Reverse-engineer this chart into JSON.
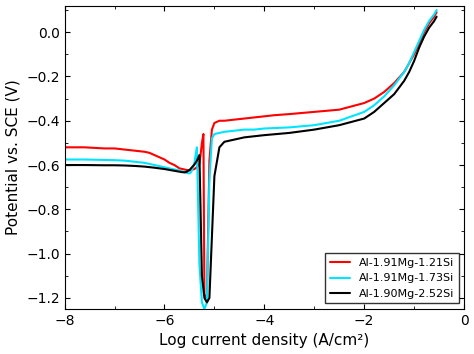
{
  "title": "",
  "xlabel": "Log current density (A/cm²)",
  "ylabel": "Potential vs. SCE (V)",
  "xlim": [
    -8,
    0
  ],
  "ylim": [
    -1.25,
    0.12
  ],
  "xticks": [
    -8,
    -6,
    -4,
    -2,
    0
  ],
  "yticks": [
    -1.2,
    -1.0,
    -0.8,
    -0.6,
    -0.4,
    -0.2,
    0.0
  ],
  "legend": [
    "Al-1.91Mg-1.21Si",
    "Al-1.91Mg-1.73Si",
    "Al-1.90Mg-2.52Si"
  ],
  "colors": [
    "#ff0000",
    "#00e5ff",
    "#000000"
  ],
  "linewidths": [
    1.5,
    1.5,
    1.5
  ],
  "background_color": "#ffffff",
  "curves": {
    "red": {
      "x": [
        -8.0,
        -7.6,
        -7.2,
        -7.0,
        -6.8,
        -6.6,
        -6.4,
        -6.3,
        -6.2,
        -6.1,
        -6.0,
        -5.9,
        -5.8,
        -5.7,
        -5.6,
        -5.5,
        -5.4,
        -5.35,
        -5.3,
        -5.28,
        -5.25,
        -5.22,
        -5.2,
        -5.18,
        -5.15,
        -5.1,
        -5.05,
        -5.0,
        -4.9,
        -4.8,
        -4.6,
        -4.4,
        -4.2,
        -4.0,
        -3.8,
        -3.5,
        -3.0,
        -2.5,
        -2.0,
        -1.8,
        -1.6,
        -1.4,
        -1.2,
        -1.1,
        -1.0,
        -0.9,
        -0.8,
        -0.7,
        -0.6,
        -0.55
      ],
      "y": [
        -0.52,
        -0.52,
        -0.525,
        -0.525,
        -0.53,
        -0.535,
        -0.54,
        -0.545,
        -0.555,
        -0.565,
        -0.575,
        -0.59,
        -0.6,
        -0.615,
        -0.62,
        -0.625,
        -0.618,
        -0.61,
        -0.595,
        -0.56,
        -0.5,
        -0.46,
        -1.18,
        -1.2,
        -1.2,
        -0.58,
        -0.44,
        -0.41,
        -0.4,
        -0.4,
        -0.395,
        -0.39,
        -0.385,
        -0.38,
        -0.375,
        -0.37,
        -0.36,
        -0.35,
        -0.32,
        -0.3,
        -0.27,
        -0.23,
        -0.18,
        -0.14,
        -0.1,
        -0.05,
        0.0,
        0.04,
        0.07,
        0.09
      ]
    },
    "cyan": {
      "x": [
        -8.0,
        -7.6,
        -7.2,
        -7.0,
        -6.8,
        -6.6,
        -6.4,
        -6.3,
        -6.2,
        -6.1,
        -6.0,
        -5.9,
        -5.85,
        -5.8,
        -5.75,
        -5.7,
        -5.65,
        -5.6,
        -5.55,
        -5.5,
        -5.48,
        -5.45,
        -5.43,
        -5.4,
        -5.38,
        -5.35,
        -5.3,
        -5.25,
        -5.2,
        -5.15,
        -5.1,
        -5.05,
        -5.0,
        -4.9,
        -4.8,
        -4.6,
        -4.4,
        -4.2,
        -4.0,
        -3.5,
        -3.0,
        -2.5,
        -2.0,
        -1.8,
        -1.6,
        -1.4,
        -1.2,
        -1.1,
        -1.0,
        -0.9,
        -0.8,
        -0.7,
        -0.6,
        -0.55
      ],
      "y": [
        -0.575,
        -0.575,
        -0.577,
        -0.578,
        -0.58,
        -0.585,
        -0.59,
        -0.595,
        -0.6,
        -0.605,
        -0.61,
        -0.615,
        -0.618,
        -0.62,
        -0.622,
        -0.625,
        -0.628,
        -0.632,
        -0.636,
        -0.638,
        -0.635,
        -0.625,
        -0.61,
        -0.59,
        -0.56,
        -0.52,
        -1.05,
        -1.22,
        -1.25,
        -1.22,
        -0.67,
        -0.48,
        -0.46,
        -0.455,
        -0.45,
        -0.445,
        -0.44,
        -0.44,
        -0.435,
        -0.43,
        -0.42,
        -0.4,
        -0.36,
        -0.33,
        -0.29,
        -0.24,
        -0.18,
        -0.14,
        -0.09,
        -0.04,
        0.01,
        0.05,
        0.08,
        0.1
      ]
    },
    "black": {
      "x": [
        -8.0,
        -7.6,
        -7.2,
        -7.0,
        -6.8,
        -6.6,
        -6.4,
        -6.2,
        -6.0,
        -5.9,
        -5.85,
        -5.8,
        -5.75,
        -5.7,
        -5.65,
        -5.6,
        -5.58,
        -5.55,
        -5.53,
        -5.5,
        -5.48,
        -5.45,
        -5.4,
        -5.35,
        -5.3,
        -5.25,
        -5.2,
        -5.15,
        -5.1,
        -5.0,
        -4.9,
        -4.8,
        -4.6,
        -4.4,
        -4.2,
        -4.0,
        -3.5,
        -3.0,
        -2.5,
        -2.0,
        -1.8,
        -1.6,
        -1.4,
        -1.2,
        -1.1,
        -1.0,
        -0.9,
        -0.8,
        -0.7,
        -0.6,
        -0.55
      ],
      "y": [
        -0.6,
        -0.6,
        -0.601,
        -0.601,
        -0.602,
        -0.604,
        -0.607,
        -0.612,
        -0.618,
        -0.622,
        -0.624,
        -0.626,
        -0.628,
        -0.63,
        -0.632,
        -0.633,
        -0.632,
        -0.63,
        -0.626,
        -0.622,
        -0.618,
        -0.61,
        -0.598,
        -0.58,
        -0.555,
        -1.1,
        -1.2,
        -1.22,
        -1.2,
        -0.65,
        -0.52,
        -0.495,
        -0.485,
        -0.475,
        -0.47,
        -0.465,
        -0.455,
        -0.44,
        -0.42,
        -0.39,
        -0.36,
        -0.32,
        -0.28,
        -0.22,
        -0.18,
        -0.13,
        -0.07,
        -0.02,
        0.02,
        0.05,
        0.07
      ]
    }
  }
}
